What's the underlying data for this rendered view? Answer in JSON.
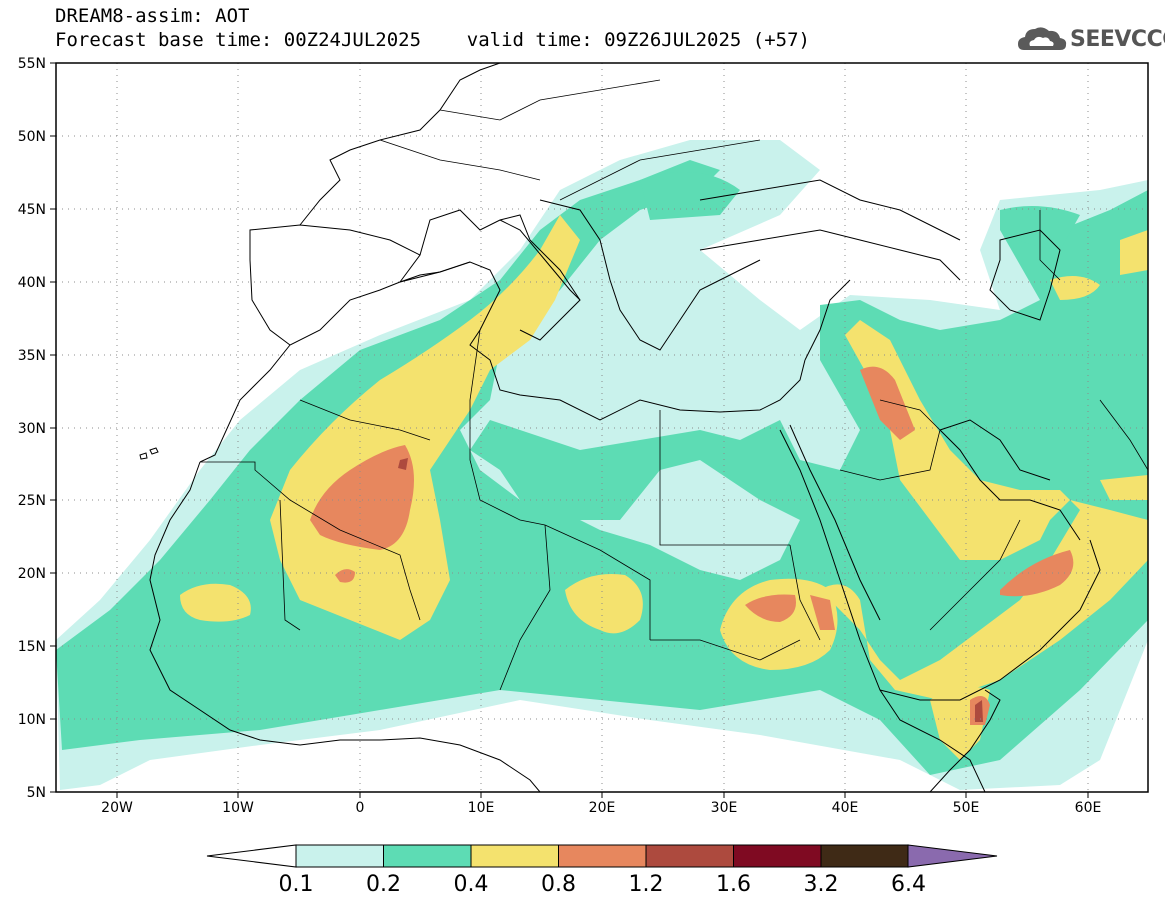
{
  "header": {
    "line1": "DREAM8-assim: AOT",
    "line2": "Forecast base time: 00Z24JUL2025    valid time: 09Z26JUL2025 (+57)"
  },
  "logo": {
    "text": "SEEVCCC",
    "icon": "cloud-icon",
    "color": "#555555"
  },
  "map": {
    "lon_ticks": [
      "20W",
      "10W",
      "0",
      "10E",
      "20E",
      "30E",
      "40E",
      "50E",
      "60E"
    ],
    "lat_ticks": [
      "55N",
      "50N",
      "45N",
      "40N",
      "35N",
      "30N",
      "25N",
      "20N",
      "15N",
      "10N",
      "5N"
    ],
    "lon_range": [
      -25,
      65
    ],
    "lat_range": [
      5,
      55
    ],
    "grid": "dotted"
  },
  "colorbar": {
    "labels": [
      "0.1",
      "0.2",
      "0.4",
      "0.8",
      "1.2",
      "1.6",
      "3.2",
      "6.4"
    ],
    "colors": [
      "#c9f2ec",
      "#5ddcb4",
      "#f4e26e",
      "#e7875e",
      "#ad4a3e",
      "#7f0a22",
      "#3f2a16",
      "#8a6aae"
    ],
    "under_color": "#ffffff"
  }
}
